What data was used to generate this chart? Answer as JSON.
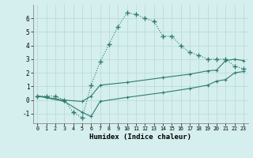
{
  "xlabel": "Humidex (Indice chaleur)",
  "ylabel": "",
  "bg_color": "#d5eeee",
  "grid_color": "#b8d8d8",
  "line_color": "#2e7d6e",
  "xlim": [
    -0.5,
    23.5
  ],
  "ylim": [
    -1.7,
    7.0
  ],
  "yticks": [
    -1,
    0,
    1,
    2,
    3,
    4,
    5,
    6
  ],
  "xticks": [
    0,
    1,
    2,
    3,
    4,
    5,
    6,
    7,
    8,
    9,
    10,
    11,
    12,
    13,
    14,
    15,
    16,
    17,
    18,
    19,
    20,
    21,
    22,
    23
  ],
  "line1_x": [
    0,
    1,
    2,
    3,
    4,
    5,
    6,
    7,
    8,
    9,
    10,
    11,
    12,
    13,
    14,
    15,
    16,
    17,
    18,
    19,
    20,
    21,
    22,
    23
  ],
  "line1_y": [
    0.3,
    0.3,
    0.3,
    0.0,
    -0.9,
    -1.3,
    1.1,
    2.8,
    4.1,
    5.4,
    6.4,
    6.3,
    6.0,
    5.8,
    4.7,
    4.7,
    4.0,
    3.5,
    3.3,
    3.0,
    3.0,
    3.0,
    2.5,
    2.3
  ],
  "line2_x": [
    0,
    3,
    5,
    6,
    7,
    10,
    14,
    17,
    19,
    20,
    21,
    22,
    23
  ],
  "line2_y": [
    0.3,
    0.0,
    -0.1,
    0.3,
    1.1,
    1.3,
    1.65,
    1.9,
    2.15,
    2.2,
    2.9,
    3.0,
    2.9
  ],
  "line3_x": [
    0,
    3,
    5,
    6,
    7,
    10,
    14,
    17,
    19,
    20,
    21,
    22,
    23
  ],
  "line3_y": [
    0.3,
    -0.1,
    -0.9,
    -1.2,
    -0.1,
    0.2,
    0.55,
    0.85,
    1.1,
    1.4,
    1.5,
    2.0,
    2.1
  ]
}
